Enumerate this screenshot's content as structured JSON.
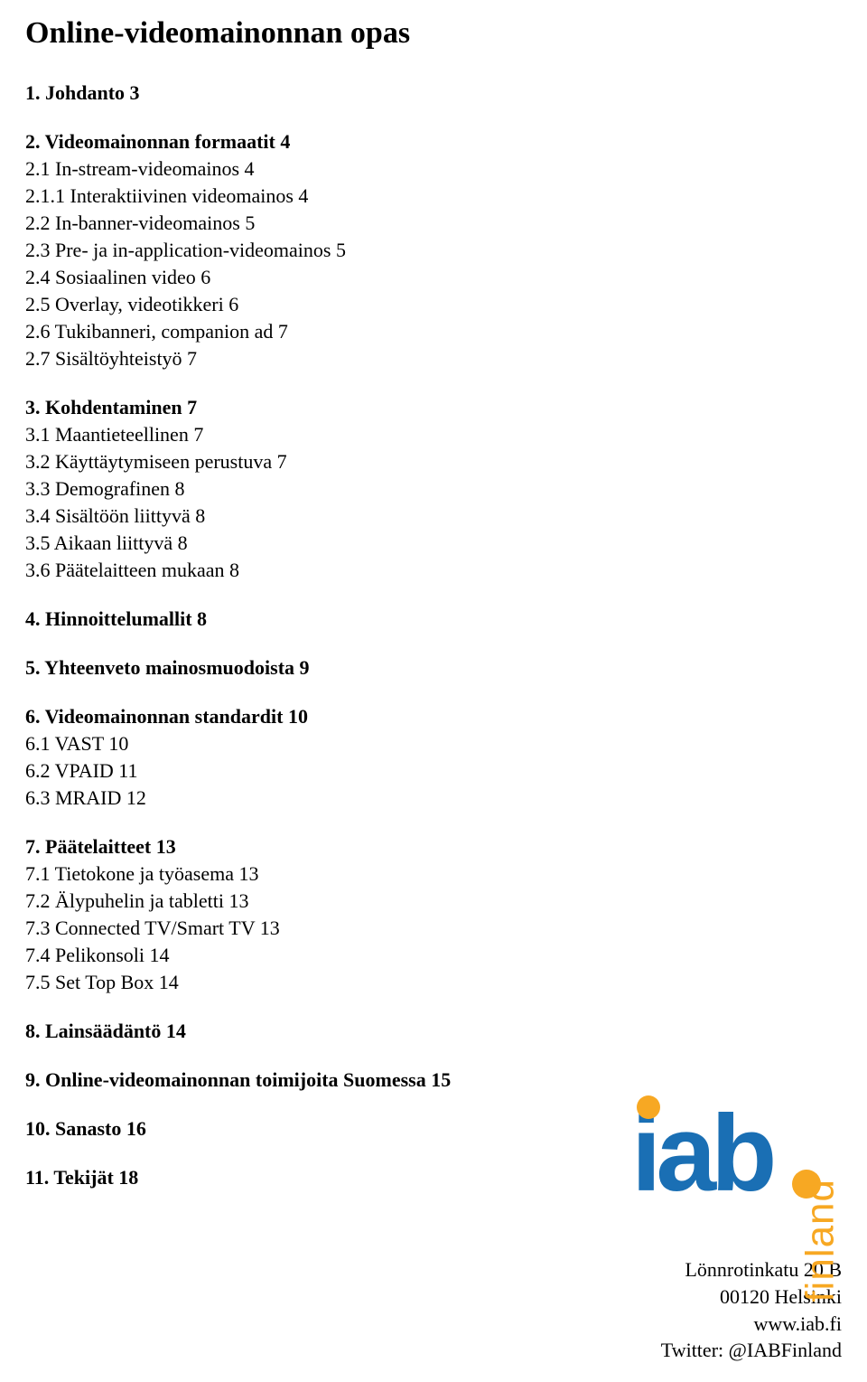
{
  "title": "Online-videomainonnan opas",
  "sections": [
    {
      "heading": "1. Johdanto",
      "page": "3",
      "items": []
    },
    {
      "heading": "2. Videomainonnan formaatit",
      "page": "4",
      "items": [
        {
          "label": "2.1 In-stream-videomainos",
          "page": "4"
        },
        {
          "label": "2.1.1 Interaktiivinen videomainos",
          "page": "4"
        },
        {
          "label": "2.2 In-banner-videomainos",
          "page": "5"
        },
        {
          "label": "2.3 Pre- ja in-application-videomainos",
          "page": "5"
        },
        {
          "label": "2.4 Sosiaalinen video",
          "page": "6"
        },
        {
          "label": "2.5 Overlay, videotikkeri",
          "page": "6"
        },
        {
          "label": "2.6 Tukibanneri, companion ad",
          "page": "7"
        },
        {
          "label": "2.7 Sisältöyhteistyö",
          "page": "7"
        }
      ]
    },
    {
      "heading": "3. Kohdentaminen",
      "page": "7",
      "items": [
        {
          "label": "3.1 Maantieteellinen",
          "page": "7"
        },
        {
          "label": "3.2 Käyttäytymiseen perustuva",
          "page": "7"
        },
        {
          "label": "3.3 Demografinen",
          "page": "8"
        },
        {
          "label": "3.4 Sisältöön liittyvä",
          "page": "8"
        },
        {
          "label": "3.5 Aikaan liittyvä",
          "page": "8"
        },
        {
          "label": "3.6 Päätelaitteen mukaan",
          "page": "8"
        }
      ]
    },
    {
      "heading": "4. Hinnoittelumallit",
      "page": "8",
      "items": []
    },
    {
      "heading": "5. Yhteenveto mainosmuodoista",
      "page": "9",
      "items": []
    },
    {
      "heading": "6. Videomainonnan standardit",
      "page": "10",
      "items": [
        {
          "label": "6.1 VAST",
          "page": "10"
        },
        {
          "label": "6.2 VPAID",
          "page": "11"
        },
        {
          "label": "6.3 MRAID",
          "page": "12"
        }
      ]
    },
    {
      "heading": "7. Päätelaitteet",
      "page": "13",
      "items": [
        {
          "label": "7.1 Tietokone ja työasema",
          "page": "13"
        },
        {
          "label": "7.2 Älypuhelin ja tabletti",
          "page": "13"
        },
        {
          "label": "7.3 Connected TV/Smart TV",
          "page": "13"
        },
        {
          "label": "7.4 Pelikonsoli",
          "page": "14"
        },
        {
          "label": "7.5 Set Top Box",
          "page": "14"
        }
      ]
    },
    {
      "heading": "8. Lainsäädäntö",
      "page": "14",
      "items": []
    },
    {
      "heading": "9. Online-videomainonnan toimijoita Suomessa",
      "page": "15",
      "items": []
    },
    {
      "heading": "10. Sanasto",
      "page": "16",
      "items": []
    },
    {
      "heading": "11. Tekijät",
      "page": "18",
      "items": []
    }
  ],
  "logo": {
    "iab_text": "iab",
    "iab_color": "#1a6fb4",
    "finland_text": "finland",
    "finland_color": "#f7a823",
    "dot_color": "#f7a823"
  },
  "contact": {
    "line1": "Lönnrotinkatu 20 B",
    "line2": "00120 Helsinki",
    "line3": "www.iab.fi",
    "line4": "Twitter: @IABFinland"
  },
  "style": {
    "body_font": "Georgia, Times New Roman, serif",
    "title_fontsize": 34,
    "heading_fontsize": 22,
    "item_fontsize": 22,
    "contact_fontsize": 22,
    "text_color": "#000000",
    "background_color": "#ffffff",
    "section_gap": 28
  }
}
